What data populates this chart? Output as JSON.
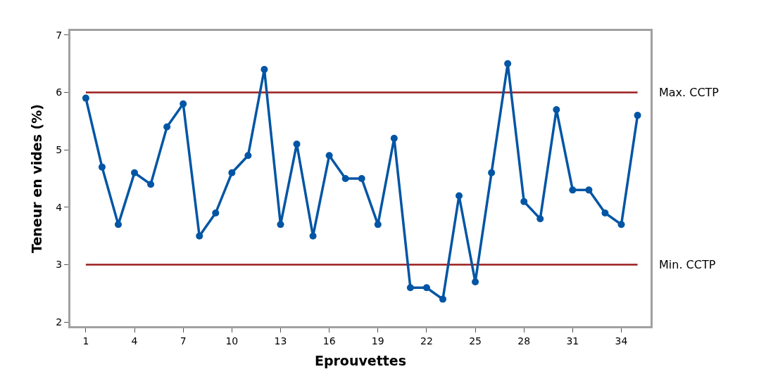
{
  "chart_data": {
    "type": "line",
    "xlabel": "Eprouvettes",
    "ylabel": "Teneur en vides (%)",
    "x": [
      1,
      2,
      3,
      4,
      5,
      6,
      7,
      8,
      9,
      10,
      11,
      12,
      13,
      14,
      15,
      16,
      17,
      18,
      19,
      20,
      21,
      22,
      23,
      24,
      25,
      26,
      27,
      28,
      29,
      30,
      31,
      32,
      33,
      34,
      35
    ],
    "series": [
      {
        "color": "#0055a4",
        "values": [
          5.9,
          4.7,
          3.7,
          4.6,
          4.4,
          5.4,
          5.8,
          3.5,
          3.9,
          4.6,
          4.9,
          6.4,
          3.7,
          5.1,
          3.5,
          4.9,
          4.5,
          4.5,
          3.7,
          5.2,
          2.6,
          2.6,
          2.4,
          4.2,
          2.7,
          4.6,
          6.5,
          4.1,
          3.8,
          5.7,
          4.3,
          4.3,
          3.9,
          3.7,
          5.6
        ]
      }
    ],
    "xlim": [
      0.05,
      35.8
    ],
    "xticks": [
      1,
      4,
      7,
      10,
      13,
      16,
      19,
      22,
      25,
      28,
      31,
      34
    ],
    "ylim": [
      1.93,
      7.07
    ],
    "yticks": [
      2,
      3,
      4,
      5,
      6,
      7
    ],
    "ref_lines": [
      {
        "axis": "y",
        "value": 6,
        "label": "Max. CCTP",
        "color": "#9b1c1c"
      },
      {
        "axis": "y",
        "value": 3,
        "label": "Min. CCTP",
        "color": "#9b1c1c"
      }
    ],
    "marker": "circle",
    "line_style": "solid"
  }
}
